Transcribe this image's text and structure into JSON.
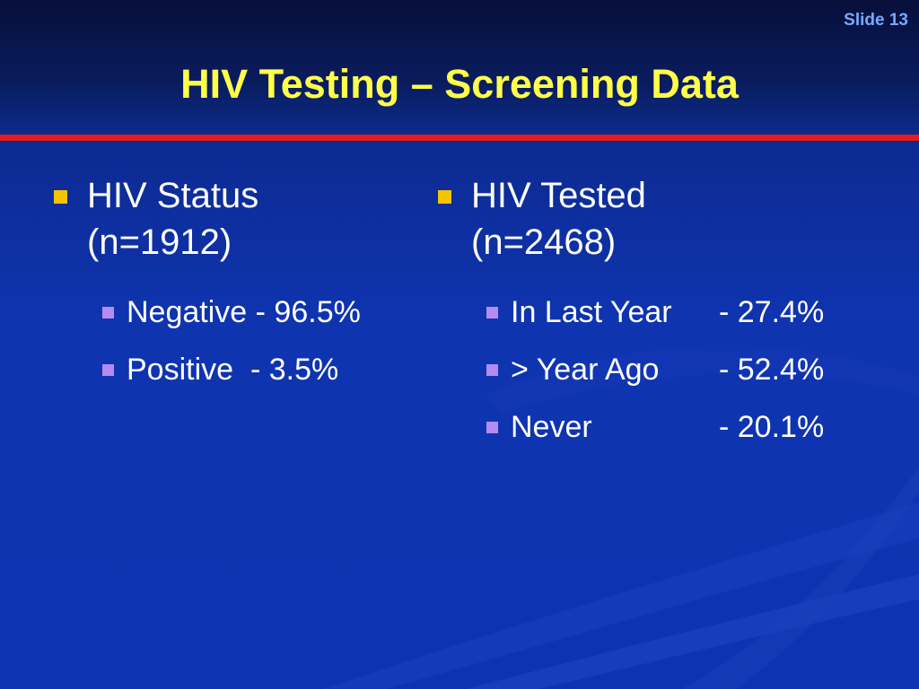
{
  "slide": {
    "number_label": "Slide 13",
    "title": "HIV Testing – Screening Data"
  },
  "left": {
    "heading_line1": "HIV Status",
    "heading_line2": "(n=1912)",
    "items": [
      {
        "label": "Negative",
        "value": "- 96.5%"
      },
      {
        "label": "Positive ",
        "value": "- 3.5%"
      }
    ]
  },
  "right": {
    "heading_line1": "HIV Tested",
    "heading_line2": "(n=2468)",
    "items": [
      {
        "label": "In Last Year",
        "value": "- 27.4%"
      },
      {
        "label": "> Year Ago",
        "value": "- 52.4%"
      },
      {
        "label": "Never",
        "value": "- 20.1%"
      }
    ]
  },
  "colors": {
    "title": "#ffff4a",
    "divider": "#e41d1d",
    "bullet_primary": "#f5c400",
    "bullet_secondary": "#b58bf0",
    "background": "#0d33b2"
  }
}
